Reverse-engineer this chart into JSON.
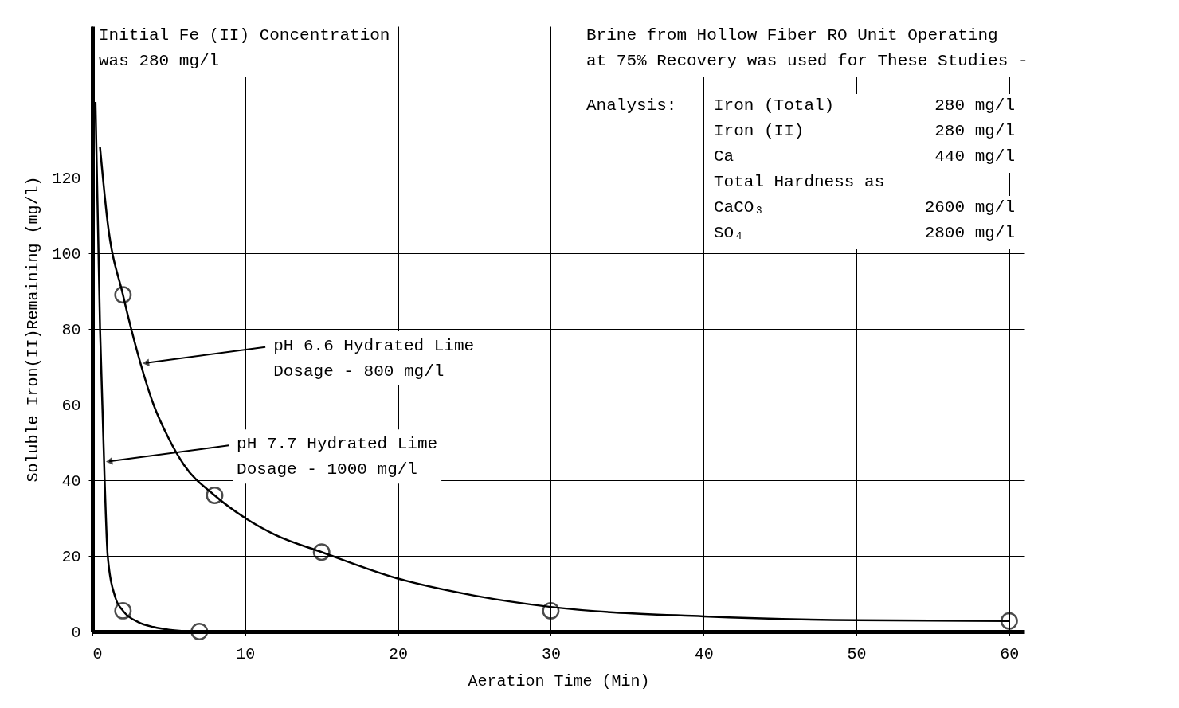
{
  "chart_data": {
    "type": "scatter",
    "xlabel": "Aeration Time (Min)",
    "ylabel": "Soluble Iron(II)Remaining (mg/l)",
    "xlim": [
      0,
      61
    ],
    "ylim": [
      0,
      160
    ],
    "xticks": [
      0,
      10,
      20,
      30,
      40,
      50,
      60
    ],
    "yticks": [
      0,
      20,
      40,
      60,
      80,
      100,
      120
    ],
    "grid": true,
    "series": [
      {
        "marker": "circle",
        "color": "#000000",
        "x": [
          2,
          8,
          15,
          30,
          60
        ],
        "values": [
          89,
          36,
          21,
          5.5,
          2.8
        ]
      },
      {
        "marker": "circle",
        "color": "#000000",
        "x": [
          2,
          7
        ],
        "values": [
          5.5,
          0
        ]
      },
      {
        "type": "line",
        "color": "#000000",
        "x": [
          0.5,
          1,
          2,
          3,
          4,
          5,
          6,
          8,
          10,
          12,
          15,
          20,
          25,
          30,
          40,
          50,
          60
        ],
        "values": [
          128,
          108,
          89,
          73,
          60,
          51,
          44,
          36,
          30,
          25.5,
          21,
          14,
          9.5,
          6.5,
          4,
          3,
          2.8
        ]
      },
      {
        "type": "line",
        "color": "#000000",
        "x": [
          0.2,
          0.5,
          0.8,
          1,
          1.5,
          2,
          3,
          4,
          5,
          7
        ],
        "values": [
          140,
          80,
          40,
          20,
          9,
          5.5,
          2.5,
          1.2,
          0.5,
          0
        ]
      }
    ],
    "annotations": [
      {
        "text": "pH 6.6 Hydrated Lime\nDosage - 800 mg/l",
        "x": 3.5,
        "y": 71
      },
      {
        "text": "pH 7.7 Hydrated Lime\nDosage - 1000 mg/l",
        "x": 1.1,
        "y": 45
      },
      "Initial Fe (II) Concentration\nwas 280 mg/l",
      "Brine from Hollow Fiber RO Unit Operating\nat 75% Recovery was used for These Studies -",
      "Analysis:",
      "Iron (Total)          280 mg/l",
      "Iron (II)             280 mg/l",
      "Ca                    440 mg/l",
      "Total Hardness as",
      "CaCO₃                2600 mg/l",
      "SO₄                  2800 mg/l"
    ]
  }
}
